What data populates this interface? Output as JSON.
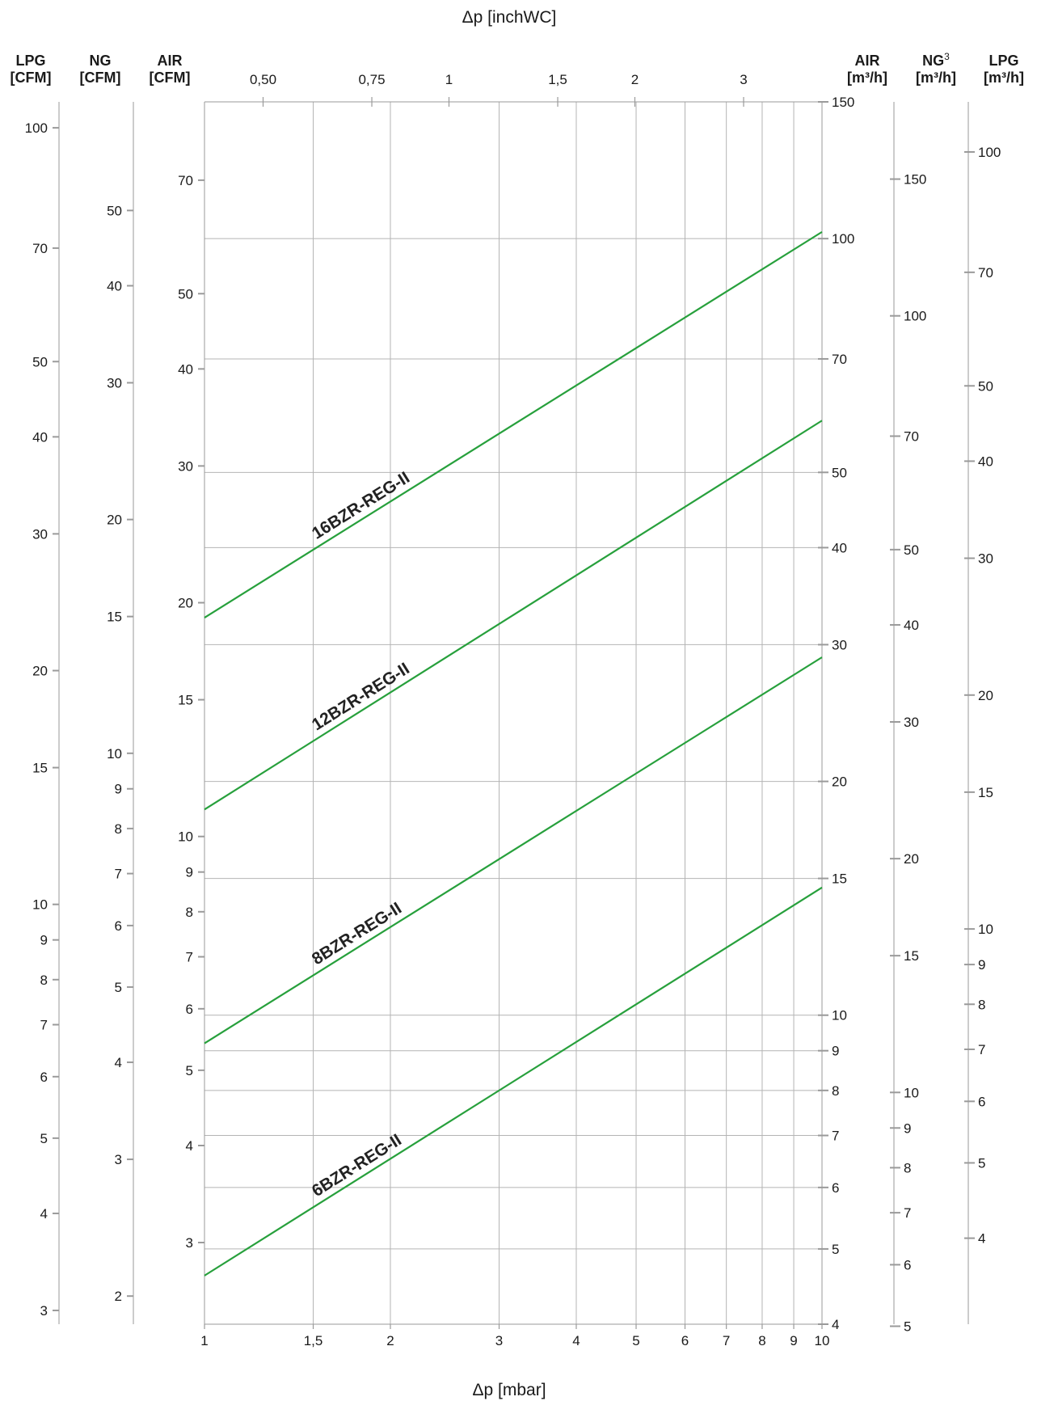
{
  "chart_data": {
    "type": "line",
    "x_scale": "log",
    "y_scale": "log",
    "grid": true,
    "xlabel_bottom": "Δp [mbar]",
    "xlabel_top": "Δp [inchWC]",
    "x_ticks_bottom": [
      {
        "value": 1,
        "label": "1"
      },
      {
        "value": 1.5,
        "label": "1,5"
      },
      {
        "value": 2,
        "label": "2"
      },
      {
        "value": 3,
        "label": "3"
      },
      {
        "value": 4,
        "label": "4"
      },
      {
        "value": 5,
        "label": "5"
      },
      {
        "value": 6,
        "label": "6"
      },
      {
        "value": 7,
        "label": "7"
      },
      {
        "value": 8,
        "label": "8"
      },
      {
        "value": 9,
        "label": "9"
      },
      {
        "value": 10,
        "label": "10"
      }
    ],
    "x_ticks_top": [
      {
        "value": 0.5,
        "label": "0,50"
      },
      {
        "value": 0.75,
        "label": "0,75"
      },
      {
        "value": 1,
        "label": "1"
      },
      {
        "value": 1.5,
        "label": "1,5"
      },
      {
        "value": 2,
        "label": "2"
      },
      {
        "value": 3,
        "label": "3"
      }
    ],
    "xlim": [
      1,
      10
    ],
    "ylim_air_m3h": [
      4,
      150
    ],
    "y_axes": [
      {
        "side": "left",
        "title_line1": "LPG",
        "title_line2": "[CFM]",
        "range": [
          2.88,
          108
        ],
        "ticks": [
          {
            "value": 100,
            "label": "100"
          },
          {
            "value": 70,
            "label": "70"
          },
          {
            "value": 50,
            "label": "50"
          },
          {
            "value": 40,
            "label": "40"
          },
          {
            "value": 30,
            "label": "30"
          },
          {
            "value": 20,
            "label": "20"
          },
          {
            "value": 15,
            "label": "15"
          },
          {
            "value": 10,
            "label": "10"
          },
          {
            "value": 9,
            "label": "9"
          },
          {
            "value": 8,
            "label": "8"
          },
          {
            "value": 7,
            "label": "7"
          },
          {
            "value": 6,
            "label": "6"
          },
          {
            "value": 5,
            "label": "5"
          },
          {
            "value": 4,
            "label": "4"
          },
          {
            "value": 3,
            "label": "3"
          }
        ]
      },
      {
        "side": "left",
        "title_line1": "NG",
        "title_line2": "[CFM]",
        "range": [
          1.84,
          69
        ],
        "ticks": [
          {
            "value": 50,
            "label": "50"
          },
          {
            "value": 40,
            "label": "40"
          },
          {
            "value": 30,
            "label": "30"
          },
          {
            "value": 20,
            "label": "20"
          },
          {
            "value": 15,
            "label": "15"
          },
          {
            "value": 10,
            "label": "10"
          },
          {
            "value": 9,
            "label": "9"
          },
          {
            "value": 8,
            "label": "8"
          },
          {
            "value": 7,
            "label": "7"
          },
          {
            "value": 6,
            "label": "6"
          },
          {
            "value": 5,
            "label": "5"
          },
          {
            "value": 4,
            "label": "4"
          },
          {
            "value": 3,
            "label": "3"
          },
          {
            "value": 2,
            "label": "2"
          }
        ]
      },
      {
        "side": "left",
        "title_line1": "AIR",
        "title_line2": "[CFM]",
        "range": [
          2.355,
          88.3
        ],
        "ticks": [
          {
            "value": 70,
            "label": "70"
          },
          {
            "value": 50,
            "label": "50"
          },
          {
            "value": 40,
            "label": "40"
          },
          {
            "value": 30,
            "label": "30"
          },
          {
            "value": 20,
            "label": "20"
          },
          {
            "value": 15,
            "label": "15"
          },
          {
            "value": 10,
            "label": "10"
          },
          {
            "value": 9,
            "label": "9"
          },
          {
            "value": 8,
            "label": "8"
          },
          {
            "value": 7,
            "label": "7"
          },
          {
            "value": 6,
            "label": "6"
          },
          {
            "value": 5,
            "label": "5"
          },
          {
            "value": 4,
            "label": "4"
          },
          {
            "value": 3,
            "label": "3"
          }
        ]
      },
      {
        "side": "right",
        "title_line1": "AIR",
        "title_line2": "[m³/h]",
        "range": [
          4,
          150
        ],
        "ticks": [
          {
            "value": 150,
            "label": "150"
          },
          {
            "value": 100,
            "label": "100"
          },
          {
            "value": 70,
            "label": "70"
          },
          {
            "value": 50,
            "label": "50"
          },
          {
            "value": 40,
            "label": "40"
          },
          {
            "value": 30,
            "label": "30"
          },
          {
            "value": 20,
            "label": "20"
          },
          {
            "value": 15,
            "label": "15"
          },
          {
            "value": 10,
            "label": "10"
          },
          {
            "value": 9,
            "label": "9"
          },
          {
            "value": 8,
            "label": "8"
          },
          {
            "value": 7,
            "label": "7"
          },
          {
            "value": 6,
            "label": "6"
          },
          {
            "value": 5,
            "label": "5"
          },
          {
            "value": 4,
            "label": "4"
          }
        ]
      },
      {
        "side": "right",
        "title_line1": "NG",
        "title_sup": "3",
        "title_line2": "[m³/h]",
        "range": [
          5.03,
          188.6
        ],
        "ticks": [
          {
            "value": 150,
            "label": "150"
          },
          {
            "value": 100,
            "label": "100"
          },
          {
            "value": 70,
            "label": "70"
          },
          {
            "value": 50,
            "label": "50"
          },
          {
            "value": 40,
            "label": "40"
          },
          {
            "value": 30,
            "label": "30"
          },
          {
            "value": 20,
            "label": "20"
          },
          {
            "value": 15,
            "label": "15"
          },
          {
            "value": 10,
            "label": "10"
          },
          {
            "value": 9,
            "label": "9"
          },
          {
            "value": 8,
            "label": "8"
          },
          {
            "value": 7,
            "label": "7"
          },
          {
            "value": 6,
            "label": "6"
          },
          {
            "value": 5,
            "label": "5"
          }
        ]
      },
      {
        "side": "right",
        "title_line1": "LPG",
        "title_line2": "[m³/h]",
        "range": [
          3.1,
          116
        ],
        "ticks": [
          {
            "value": 100,
            "label": "100"
          },
          {
            "value": 70,
            "label": "70"
          },
          {
            "value": 50,
            "label": "50"
          },
          {
            "value": 40,
            "label": "40"
          },
          {
            "value": 30,
            "label": "30"
          },
          {
            "value": 20,
            "label": "20"
          },
          {
            "value": 15,
            "label": "15"
          },
          {
            "value": 10,
            "label": "10"
          },
          {
            "value": 9,
            "label": "9"
          },
          {
            "value": 8,
            "label": "8"
          },
          {
            "value": 7,
            "label": "7"
          },
          {
            "value": 6,
            "label": "6"
          },
          {
            "value": 5,
            "label": "5"
          },
          {
            "value": 4,
            "label": "4"
          }
        ]
      }
    ],
    "gridlines_y_air_m3h": [
      100,
      70,
      50,
      40,
      30,
      20,
      15,
      10,
      9,
      8,
      7,
      6,
      5
    ],
    "series": [
      {
        "name": "16BZR-REG-II",
        "x": [
          1,
          10
        ],
        "y_air_m3h": [
          32.5,
          102
        ]
      },
      {
        "name": "12BZR-REG-II",
        "x": [
          1,
          10
        ],
        "y_air_m3h": [
          18.4,
          58.3
        ]
      },
      {
        "name": "8BZR-REG-II",
        "x": [
          1,
          10
        ],
        "y_air_m3h": [
          9.2,
          28.9
        ]
      },
      {
        "name": "6BZR-REG-II",
        "x": [
          1,
          10
        ],
        "y_air_m3h": [
          4.62,
          14.6
        ]
      }
    ],
    "colors": {
      "series": "#27a03c",
      "grid": "#b4b4b4",
      "axis": "#9a9a9a",
      "text": "#1a1a1a"
    }
  }
}
